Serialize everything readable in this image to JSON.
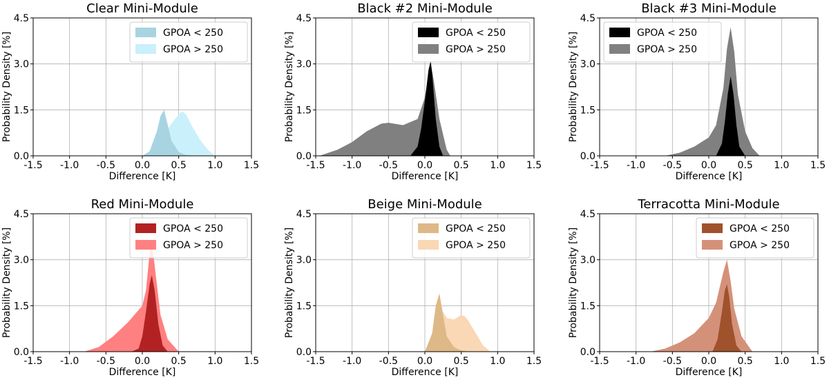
{
  "chart_data": [
    {
      "type": "area",
      "title": "Clear Mini-Module",
      "xlabel": "Difference [K]",
      "ylabel": "Probability Density [%]",
      "xlim": [
        -1.5,
        1.5
      ],
      "ylim": [
        0,
        4.5
      ],
      "xticks": [
        -1.5,
        -1.0,
        -0.5,
        0.0,
        0.5,
        1.0,
        1.5
      ],
      "yticks": [
        0.0,
        1.5,
        3.0,
        4.5
      ],
      "grid": true,
      "legend_position": "top-right",
      "series": [
        {
          "name": "GPOA < 250",
          "color": "#a8d4e2",
          "x": [
            0.0,
            0.1,
            0.2,
            0.25,
            0.3,
            0.35,
            0.4,
            0.5,
            0.6,
            0.7,
            0.8
          ],
          "y": [
            0.0,
            0.15,
            0.8,
            1.3,
            1.5,
            1.0,
            0.5,
            0.12,
            0.03,
            0.01,
            0.0
          ]
        },
        {
          "name": "GPOA > 250",
          "color": "#c9f0fb",
          "x": [
            0.1,
            0.2,
            0.3,
            0.4,
            0.5,
            0.55,
            0.6,
            0.7,
            0.8,
            0.9,
            1.0
          ],
          "y": [
            0.0,
            0.2,
            0.7,
            1.05,
            1.35,
            1.45,
            1.35,
            0.9,
            0.5,
            0.2,
            0.0
          ]
        }
      ]
    },
    {
      "type": "area",
      "title": "Black #2 Mini-Module",
      "xlabel": "Difference [K]",
      "ylabel": "Probability Density [%]",
      "xlim": [
        -1.5,
        1.5
      ],
      "ylim": [
        0,
        4.5
      ],
      "xticks": [
        -1.5,
        -1.0,
        -0.5,
        0.0,
        0.5,
        1.0,
        1.5
      ],
      "yticks": [
        0.0,
        1.5,
        3.0,
        4.5
      ],
      "grid": true,
      "legend_position": "top-right",
      "series": [
        {
          "name": "GPOA < 250",
          "color": "#000000",
          "x": [
            -0.2,
            -0.1,
            -0.05,
            0.0,
            0.05,
            0.08,
            0.1,
            0.15,
            0.2,
            0.25
          ],
          "y": [
            0.0,
            0.3,
            0.9,
            1.8,
            2.8,
            3.1,
            2.7,
            1.2,
            0.3,
            0.0
          ]
        },
        {
          "name": "GPOA > 250",
          "color": "#808080",
          "x": [
            -1.45,
            -1.2,
            -1.0,
            -0.8,
            -0.6,
            -0.5,
            -0.3,
            -0.1,
            0.0,
            0.05,
            0.08,
            0.12,
            0.2,
            0.3,
            0.35
          ],
          "y": [
            0.0,
            0.2,
            0.45,
            0.8,
            1.05,
            1.08,
            1.0,
            1.2,
            1.9,
            2.6,
            3.0,
            2.5,
            1.2,
            0.2,
            0.0
          ]
        }
      ]
    },
    {
      "type": "area",
      "title": "Black #3 Mini-Module",
      "xlabel": "Difference [K]",
      "ylabel": "Probability Density [%]",
      "xlim": [
        -1.5,
        1.5
      ],
      "ylim": [
        0,
        4.5
      ],
      "xticks": [
        -1.5,
        -1.0,
        -0.5,
        0.0,
        0.5,
        1.0,
        1.5
      ],
      "yticks": [
        0.0,
        1.5,
        3.0,
        4.5
      ],
      "grid": true,
      "legend_position": "top-left",
      "series": [
        {
          "name": "GPOA < 250",
          "color": "#000000",
          "x": [
            0.1,
            0.18,
            0.22,
            0.26,
            0.3,
            0.34,
            0.38,
            0.42,
            0.5
          ],
          "y": [
            0.0,
            0.4,
            1.1,
            2.0,
            2.6,
            2.0,
            1.0,
            0.3,
            0.0
          ]
        },
        {
          "name": "GPOA > 250",
          "color": "#808080",
          "x": [
            -0.6,
            -0.4,
            -0.2,
            0.0,
            0.1,
            0.2,
            0.25,
            0.3,
            0.35,
            0.4,
            0.5,
            0.6,
            0.7
          ],
          "y": [
            0.0,
            0.1,
            0.3,
            0.6,
            1.0,
            2.2,
            3.5,
            4.2,
            3.4,
            2.0,
            0.8,
            0.25,
            0.0
          ]
        }
      ]
    },
    {
      "type": "area",
      "title": "Red Mini-Module",
      "xlabel": "Difference [K]",
      "ylabel": "Probability Density [%]",
      "xlim": [
        -1.5,
        1.5
      ],
      "ylim": [
        0,
        4.5
      ],
      "xticks": [
        -1.5,
        -1.0,
        -0.5,
        0.0,
        0.5,
        1.0,
        1.5
      ],
      "yticks": [
        0.0,
        1.5,
        3.0,
        4.5
      ],
      "grid": true,
      "legend_position": "top-right",
      "series": [
        {
          "name": "GPOA < 250",
          "color": "#b22222",
          "x": [
            -0.15,
            -0.05,
            0.0,
            0.05,
            0.1,
            0.13,
            0.17,
            0.22,
            0.28,
            0.35
          ],
          "y": [
            0.0,
            0.1,
            0.5,
            1.3,
            2.2,
            2.5,
            2.0,
            0.9,
            0.2,
            0.0
          ]
        },
        {
          "name": "GPOA > 250",
          "color": "#ff8080",
          "x": [
            -0.8,
            -0.6,
            -0.4,
            -0.2,
            0.0,
            0.05,
            0.1,
            0.13,
            0.18,
            0.25,
            0.35,
            0.5
          ],
          "y": [
            0.0,
            0.15,
            0.5,
            0.95,
            1.5,
            2.0,
            3.2,
            3.6,
            2.6,
            1.2,
            0.4,
            0.0
          ]
        }
      ]
    },
    {
      "type": "area",
      "title": "Beige Mini-Module",
      "xlabel": "Difference [K]",
      "ylabel": "Probability Density [%]",
      "xlim": [
        -1.5,
        1.5
      ],
      "ylim": [
        0,
        4.5
      ],
      "xticks": [
        -1.5,
        -1.0,
        -0.5,
        0.0,
        0.5,
        1.0,
        1.5
      ],
      "yticks": [
        0.0,
        1.5,
        3.0,
        4.5
      ],
      "grid": true,
      "legend_position": "top-right",
      "series": [
        {
          "name": "GPOA < 250",
          "color": "#deb887",
          "x": [
            0.0,
            0.1,
            0.15,
            0.2,
            0.25,
            0.3,
            0.4,
            0.5,
            0.6
          ],
          "y": [
            0.0,
            0.6,
            1.5,
            1.9,
            1.2,
            0.5,
            0.15,
            0.04,
            0.0
          ]
        },
        {
          "name": "GPOA > 250",
          "color": "#fad7b5",
          "x": [
            0.0,
            0.1,
            0.2,
            0.3,
            0.4,
            0.5,
            0.55,
            0.6,
            0.7,
            0.8,
            0.9
          ],
          "y": [
            0.0,
            0.4,
            1.5,
            1.1,
            1.05,
            1.2,
            1.15,
            1.0,
            0.6,
            0.2,
            0.0
          ]
        }
      ]
    },
    {
      "type": "area",
      "title": "Terracotta Mini-Module",
      "xlabel": "Difference [K]",
      "ylabel": "Probability Density [%]",
      "xlim": [
        -1.5,
        1.5
      ],
      "ylim": [
        0,
        4.5
      ],
      "xticks": [
        -1.5,
        -1.0,
        -0.5,
        0.0,
        0.5,
        1.0,
        1.5
      ],
      "yticks": [
        0.0,
        1.5,
        3.0,
        4.5
      ],
      "grid": true,
      "legend_position": "top-right",
      "series": [
        {
          "name": "GPOA < 250",
          "color": "#a0522d",
          "x": [
            0.05,
            0.12,
            0.18,
            0.22,
            0.25,
            0.28,
            0.32,
            0.38,
            0.45
          ],
          "y": [
            0.0,
            0.4,
            1.3,
            2.0,
            2.2,
            1.8,
            0.9,
            0.2,
            0.0
          ]
        },
        {
          "name": "GPOA > 250",
          "color": "#d4917a",
          "x": [
            -0.8,
            -0.6,
            -0.4,
            -0.2,
            0.0,
            0.1,
            0.2,
            0.25,
            0.3,
            0.35,
            0.45,
            0.6
          ],
          "y": [
            0.0,
            0.1,
            0.3,
            0.6,
            1.1,
            1.6,
            2.6,
            3.0,
            2.3,
            1.4,
            0.5,
            0.0
          ]
        }
      ]
    }
  ]
}
